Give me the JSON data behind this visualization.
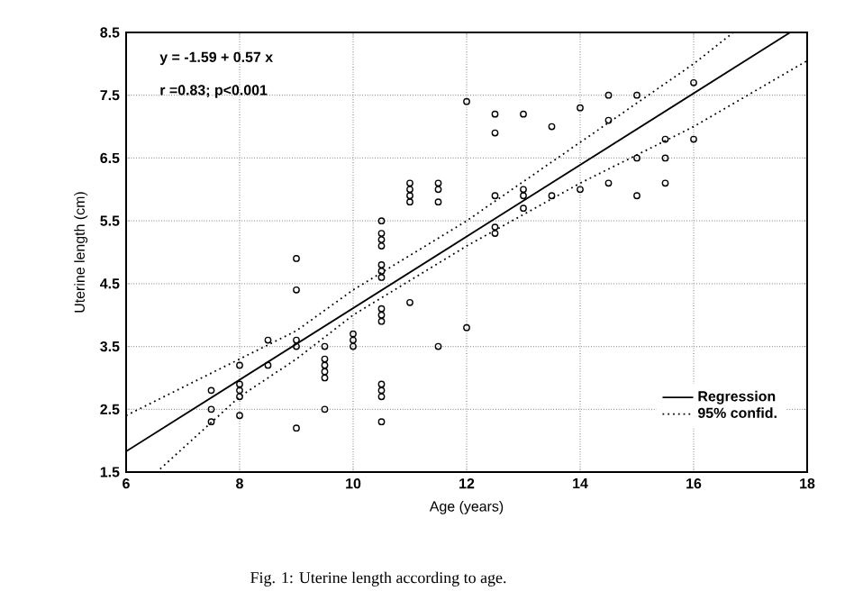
{
  "chart_data": {
    "type": "scatter",
    "xlabel": "Age (years)",
    "ylabel": "Uterine length (cm)",
    "annotations": [
      "y = -1.59 + 0.57 x",
      "r =0.83; p<0.001",
      "Fig. 1:   Uterine length according to age."
    ],
    "xlim": [
      6,
      18
    ],
    "ylim": [
      1.5,
      8.5
    ],
    "xticks": [
      6,
      8,
      10,
      12,
      14,
      16,
      18
    ],
    "yticks": [
      1.5,
      2.5,
      3.5,
      4.5,
      5.5,
      6.5,
      7.5,
      8.5
    ],
    "grid": true,
    "legend": "bottom right",
    "series": [
      {
        "marker": "circle",
        "color": "#000000",
        "x": [
          7.5,
          7.5,
          7.5,
          8,
          8,
          8,
          8,
          8,
          8.5,
          8.5,
          9,
          9,
          9,
          9,
          9,
          9.5,
          9.5,
          9.5,
          9.5,
          9.5,
          9.5,
          10,
          10,
          10,
          10.5,
          10.5,
          10.5,
          10.5,
          10.5,
          10.5,
          10.5,
          10.5,
          10.5,
          10.5,
          10.5,
          10.5,
          10.5,
          10.5,
          11,
          11,
          11,
          11,
          11,
          11.5,
          11.5,
          11.5,
          11.5,
          12,
          12,
          12.5,
          12.5,
          12.5,
          12.5,
          12.5,
          13,
          13,
          13,
          13,
          13.5,
          13.5,
          14,
          14,
          14.5,
          14.5,
          14.5,
          15,
          15,
          15,
          15.5,
          15.5,
          15.5,
          16,
          16
        ],
        "values": [
          2.8,
          2.5,
          2.3,
          3.2,
          2.9,
          2.8,
          2.7,
          2.4,
          3.6,
          3.2,
          4.9,
          4.4,
          3.6,
          3.5,
          2.2,
          3.5,
          3.3,
          3.2,
          3.1,
          3.0,
          2.5,
          3.7,
          3.6,
          3.5,
          5.5,
          5.3,
          5.2,
          5.1,
          4.8,
          4.7,
          4.6,
          4.1,
          4.0,
          3.9,
          2.9,
          2.8,
          2.7,
          2.3,
          6.1,
          6.0,
          5.9,
          5.8,
          4.2,
          6.1,
          6.0,
          5.8,
          3.5,
          7.4,
          3.8,
          7.2,
          6.9,
          5.9,
          5.4,
          5.3,
          7.2,
          6.0,
          5.9,
          5.7,
          7.0,
          5.9,
          7.3,
          6.0,
          7.5,
          7.1,
          6.1,
          7.5,
          6.5,
          5.9,
          6.8,
          6.5,
          6.1,
          7.7,
          6.8
        ]
      },
      {
        "type": "line",
        "name": "Regression",
        "color": "#000000",
        "line_style": "solid",
        "marker": "none",
        "x": [
          6,
          17.7
        ],
        "values": [
          1.83,
          8.5
        ]
      },
      {
        "type": "line",
        "name": "95% confid.",
        "color": "#000000",
        "line_style": "dotted",
        "marker": "none",
        "x": [
          6,
          8,
          9,
          10,
          12,
          14,
          16,
          16.7
        ],
        "values": [
          2.4,
          3.3,
          3.75,
          4.4,
          5.5,
          6.75,
          8.0,
          8.5
        ]
      },
      {
        "type": "line",
        "color": "#000000",
        "line_style": "dotted",
        "marker": "none",
        "x": [
          6.6,
          8,
          9,
          10,
          12,
          14,
          16,
          18
        ],
        "values": [
          1.55,
          2.7,
          3.3,
          4.0,
          5.1,
          6.1,
          7.0,
          8.05
        ]
      }
    ]
  }
}
